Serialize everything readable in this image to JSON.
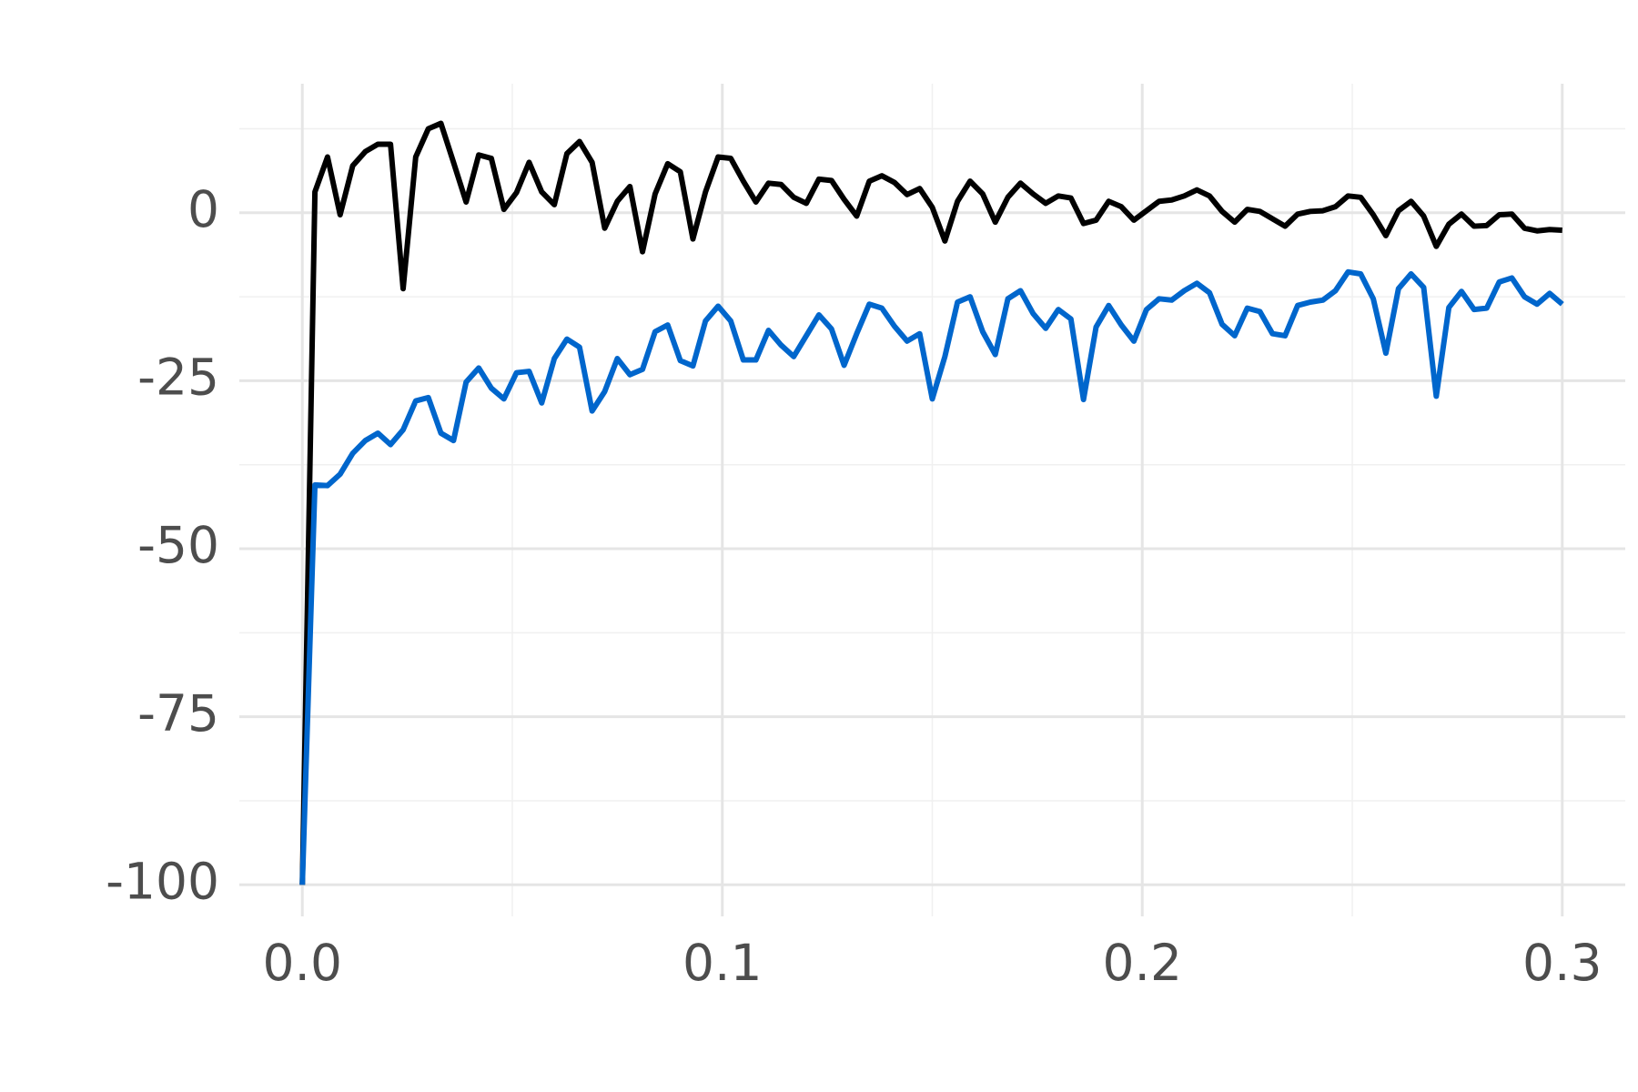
{
  "chart_data": {
    "type": "line",
    "x": [
      0,
      0.003,
      0.006,
      0.009,
      0.012,
      0.015,
      0.018,
      0.021,
      0.024,
      0.027,
      0.03,
      0.033,
      0.036,
      0.039,
      0.042,
      0.045,
      0.048,
      0.051,
      0.054,
      0.057,
      0.06,
      0.063,
      0.066,
      0.069,
      0.072,
      0.075,
      0.078,
      0.081,
      0.084,
      0.087,
      0.09,
      0.093,
      0.096,
      0.099,
      0.102,
      0.105,
      0.108,
      0.111,
      0.114,
      0.117,
      0.12,
      0.123,
      0.126,
      0.129,
      0.132,
      0.135,
      0.138,
      0.141,
      0.144,
      0.147,
      0.15,
      0.153,
      0.156,
      0.159,
      0.162,
      0.165,
      0.168,
      0.171,
      0.174,
      0.177,
      0.18,
      0.183,
      0.186,
      0.189,
      0.192,
      0.195,
      0.198,
      0.201,
      0.204,
      0.207,
      0.21,
      0.213,
      0.216,
      0.219,
      0.222,
      0.225,
      0.228,
      0.231,
      0.234,
      0.237,
      0.24,
      0.243,
      0.246,
      0.249,
      0.252,
      0.255,
      0.258,
      0.261,
      0.264,
      0.267,
      0.27,
      0.273,
      0.276,
      0.279,
      0.282,
      0.285,
      0.288,
      0.291,
      0.294,
      0.297,
      0.3
    ],
    "series": [
      {
        "color": "#000000",
        "values": [
          -100,
          3.1,
          8.3,
          -0.3,
          7.0,
          9.1,
          10.2,
          10.2,
          -11.3,
          8.3,
          12.5,
          13.3,
          7.5,
          1.6,
          8.6,
          8.1,
          0.5,
          3.0,
          7.5,
          3.1,
          1.2,
          8.8,
          10.6,
          7.5,
          -2.3,
          1.7,
          3.9,
          -5.8,
          2.8,
          7.3,
          6.1,
          -3.9,
          3.1,
          8.3,
          8.1,
          4.7,
          1.6,
          4.4,
          4.2,
          2.3,
          1.4,
          5.0,
          4.8,
          2.0,
          -0.5,
          4.7,
          5.5,
          4.5,
          2.7,
          3.6,
          0.8,
          -4.2,
          1.7,
          4.7,
          2.8,
          -1.4,
          2.3,
          4.4,
          2.8,
          1.4,
          2.5,
          2.2,
          -1.6,
          -1.1,
          1.7,
          0.9,
          -1.1,
          0.3,
          1.7,
          1.9,
          2.5,
          3.4,
          2.5,
          0.2,
          -1.4,
          0.5,
          0.2,
          -0.9,
          -2.0,
          -0.2,
          0.2,
          0.3,
          0.9,
          2.5,
          2.3,
          -0.3,
          -3.4,
          0.3,
          1.7,
          -0.5,
          -5.0,
          -1.7,
          -0.2,
          -2.0,
          -1.9,
          -0.3,
          -0.2,
          -2.3,
          -2.7,
          -2.5,
          -2.6
        ]
      },
      {
        "color": "#0066cc",
        "values": [
          -100,
          -40.5,
          -40.6,
          -38.9,
          -35.8,
          -33.9,
          -32.8,
          -34.5,
          -32.3,
          -28.0,
          -27.5,
          -32.8,
          -33.9,
          -25.2,
          -23.1,
          -26.1,
          -27.7,
          -23.8,
          -23.6,
          -28.3,
          -21.7,
          -18.8,
          -20.0,
          -29.5,
          -26.6,
          -21.7,
          -24.1,
          -23.3,
          -17.7,
          -16.7,
          -22.0,
          -22.8,
          -16.1,
          -13.9,
          -16.1,
          -21.9,
          -21.9,
          -17.5,
          -19.7,
          -21.4,
          -18.3,
          -15.2,
          -17.3,
          -22.7,
          -18.0,
          -13.6,
          -14.2,
          -16.9,
          -19.1,
          -18.0,
          -27.7,
          -21.4,
          -13.3,
          -12.5,
          -17.7,
          -21.1,
          -12.8,
          -11.6,
          -15.0,
          -17.2,
          -14.4,
          -15.8,
          -27.8,
          -17.0,
          -13.8,
          -16.7,
          -19.1,
          -14.4,
          -12.8,
          -13.0,
          -11.6,
          -10.5,
          -11.9,
          -16.6,
          -18.3,
          -14.2,
          -14.7,
          -18.0,
          -18.3,
          -13.8,
          -13.3,
          -13.0,
          -11.6,
          -8.8,
          -9.1,
          -12.8,
          -20.9,
          -11.3,
          -9.1,
          -11.1,
          -27.3,
          -14.1,
          -11.7,
          -14.4,
          -14.2,
          -10.3,
          -9.7,
          -12.5,
          -13.6,
          -12.0,
          -13.6
        ]
      }
    ],
    "xlim": [
      -0.015,
      0.315
    ],
    "xticks": [
      {
        "value": 0,
        "label": "0.0"
      },
      0.1,
      0.2,
      0.3
    ],
    "ylim": [
      -104.7,
      19.2
    ],
    "yticks": [
      0,
      -25,
      -50,
      -75,
      -100
    ],
    "grid": true
  }
}
